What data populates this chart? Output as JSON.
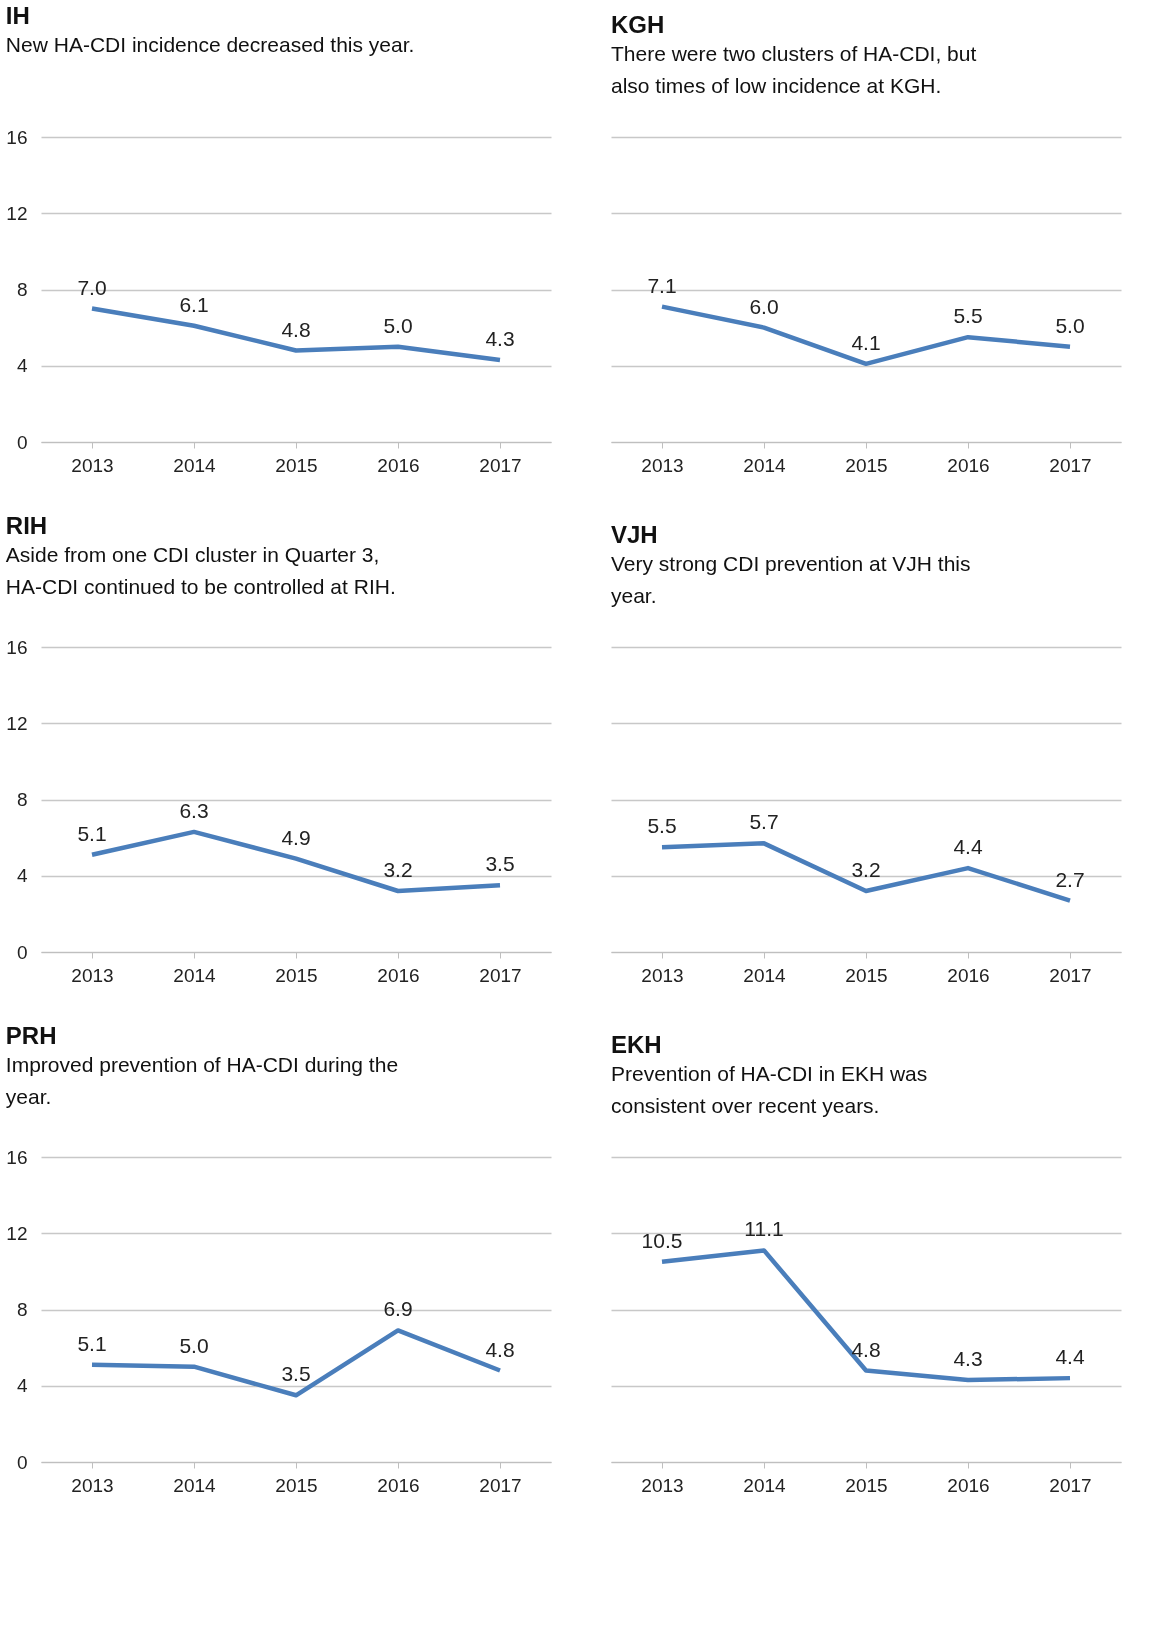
{
  "chart_data": [
    {
      "type": "line",
      "title": "IH",
      "subtitle": "New HA-CDI incidence decreased this year.",
      "categories": [
        "2013",
        "2014",
        "2015",
        "2016",
        "2017"
      ],
      "series": [
        {
          "color": "#4a7ebb",
          "values": [
            7.0,
            6.1,
            4.8,
            5.0,
            4.3
          ],
          "value_labels": [
            "7.0",
            "6.1",
            "4.8",
            "5.0",
            "4.3"
          ]
        }
      ],
      "ylim": [
        0,
        16
      ],
      "yticks": [
        0,
        4,
        8,
        12,
        16
      ],
      "grid": "y"
    },
    {
      "type": "line",
      "title": "KGH",
      "subtitle": "There were two clusters of HA-CDI, but also times of low  incidence  at KGH.",
      "categories": [
        "2013",
        "2014",
        "2015",
        "2016",
        "2017"
      ],
      "series": [
        {
          "color": "#4a7ebb",
          "values": [
            7.1,
            6.0,
            4.1,
            5.5,
            5.0
          ],
          "value_labels": [
            "7.1",
            "6.0",
            "4.1",
            "5.5",
            "5.0"
          ]
        }
      ],
      "ylim": [
        0,
        16
      ],
      "yticks": [
        0,
        4,
        8,
        12,
        16
      ],
      "grid": "y",
      "tick_labels": "x"
    },
    {
      "type": "line",
      "title": "RIH",
      "subtitle": "Aside from one CDI cluster in Quarter 3, HA-CDI continued to be controlled at RIH.",
      "categories": [
        "2013",
        "2014",
        "2015",
        "2016",
        "2017"
      ],
      "series": [
        {
          "color": "#4a7ebb",
          "values": [
            5.1,
            6.3,
            4.9,
            3.2,
            3.5
          ],
          "value_labels": [
            "5.1",
            "6.3",
            "4.9",
            "3.2",
            "3.5"
          ]
        }
      ],
      "ylim": [
        0,
        16
      ],
      "yticks": [
        0,
        4,
        8,
        12,
        16
      ],
      "grid": "y"
    },
    {
      "type": "line",
      "title": "VJH",
      "subtitle": "Very strong CDI prevention at VJH this year.",
      "categories": [
        "2013",
        "2014",
        "2015",
        "2016",
        "2017"
      ],
      "series": [
        {
          "color": "#4a7ebb",
          "values": [
            5.5,
            5.7,
            3.2,
            4.4,
            2.7
          ],
          "value_labels": [
            "5.5",
            "5.7",
            "3.2",
            "4.4",
            "2.7"
          ]
        }
      ],
      "ylim": [
        0,
        16
      ],
      "yticks": [
        0,
        4,
        8,
        12,
        16
      ],
      "grid": "y",
      "tick_labels": "x"
    },
    {
      "type": "line",
      "title": "PRH",
      "subtitle": "Improved prevention  of HA-CDI during the year.",
      "categories": [
        "2013",
        "2014",
        "2015",
        "2016",
        "2017"
      ],
      "series": [
        {
          "color": "#4a7ebb",
          "values": [
            5.1,
            5.0,
            3.5,
            6.9,
            4.8
          ],
          "value_labels": [
            "5.1",
            "5.0",
            "3.5",
            "6.9",
            "4.8"
          ]
        }
      ],
      "ylim": [
        0,
        16
      ],
      "yticks": [
        0,
        4,
        8,
        12,
        16
      ],
      "grid": "y"
    },
    {
      "type": "line",
      "title": "EKH",
      "subtitle": "Prevention of HA-CDI in EKH was consistent over recent years.",
      "categories": [
        "2013",
        "2014",
        "2015",
        "2016",
        "2017"
      ],
      "series": [
        {
          "color": "#4a7ebb",
          "values": [
            10.5,
            11.1,
            4.8,
            4.3,
            4.4
          ],
          "value_labels": [
            "10.5",
            "11.1",
            "4.8",
            "4.3",
            "4.4"
          ]
        }
      ],
      "ylim": [
        0,
        16
      ],
      "yticks": [
        0,
        4,
        8,
        12,
        16
      ],
      "grid": "y",
      "tick_labels": "x"
    }
  ]
}
